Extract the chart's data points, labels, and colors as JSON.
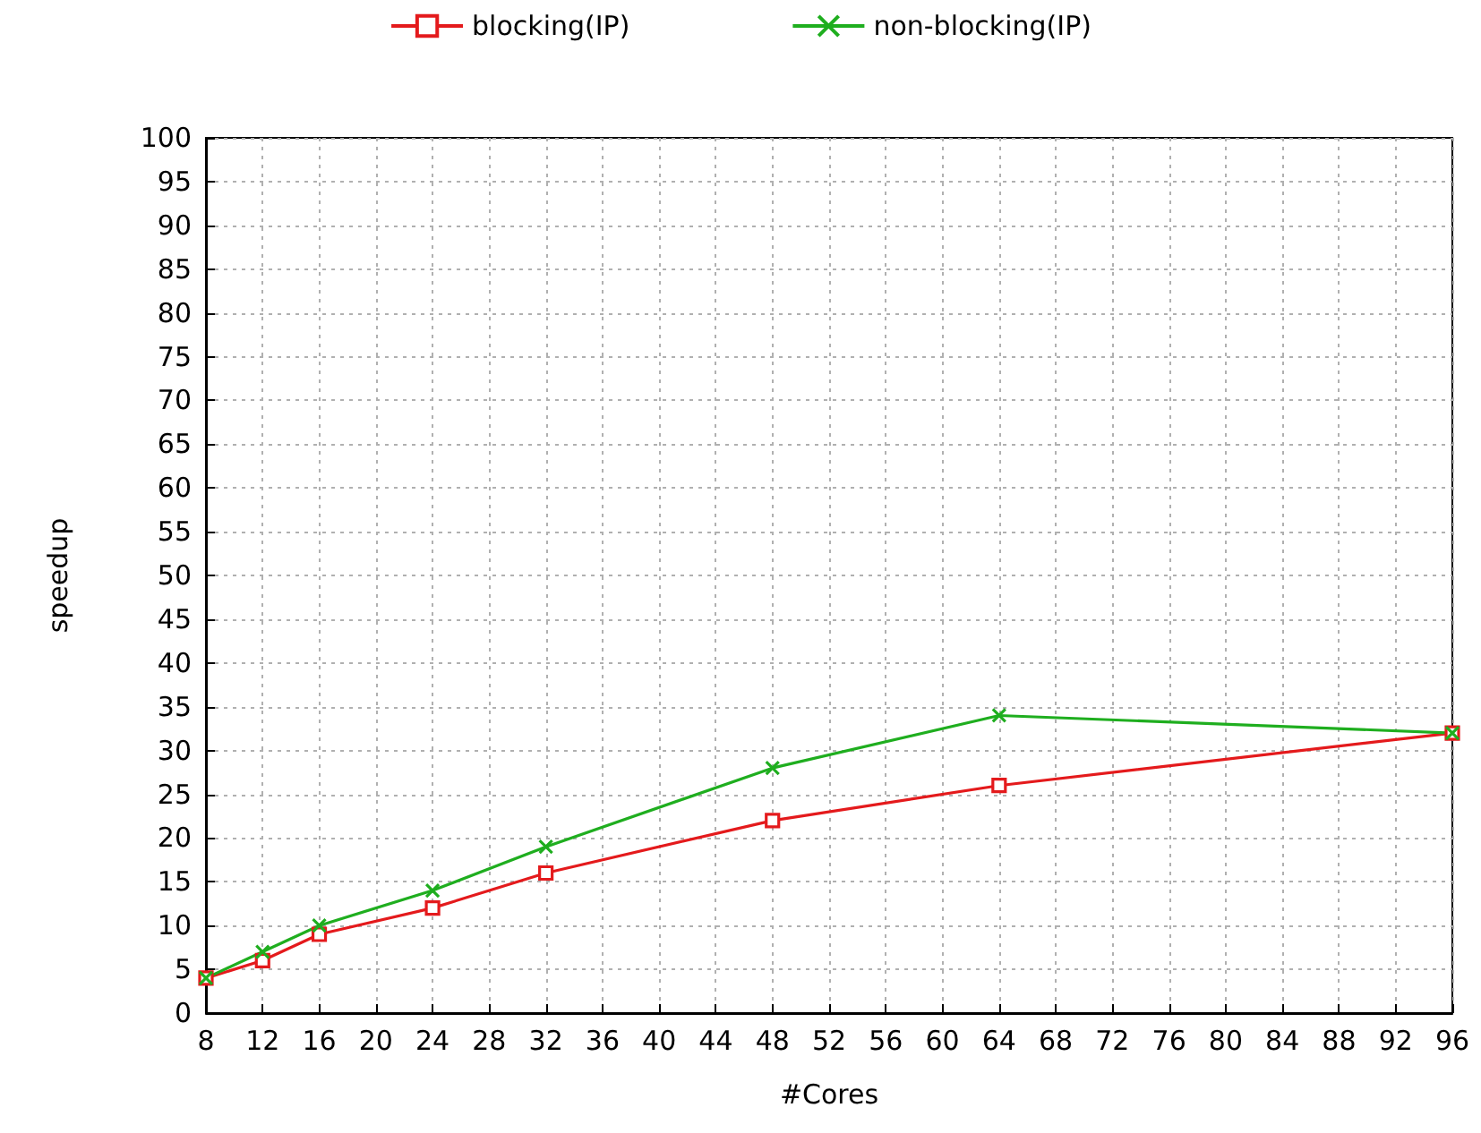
{
  "chart_data": {
    "type": "line",
    "xlabel": "#Cores",
    "ylabel": "speedup",
    "x": [
      8,
      12,
      16,
      24,
      32,
      48,
      64,
      96
    ],
    "series": [
      {
        "name": "blocking(IP)",
        "color": "#e41a1c",
        "marker": "square",
        "values": [
          4,
          6,
          9,
          12,
          16,
          22,
          26,
          32
        ]
      },
      {
        "name": "non-blocking(IP)",
        "color": "#1fae1f",
        "marker": "cross",
        "values": [
          4,
          7,
          10,
          14,
          19,
          28,
          34,
          32
        ]
      }
    ],
    "xlim": [
      8,
      96
    ],
    "xticks": [
      8,
      12,
      16,
      20,
      24,
      28,
      32,
      36,
      40,
      44,
      48,
      52,
      56,
      60,
      64,
      68,
      72,
      76,
      80,
      84,
      88,
      92,
      96
    ],
    "ylim": [
      0,
      100
    ],
    "yticks": [
      0,
      5,
      10,
      15,
      20,
      25,
      30,
      35,
      40,
      45,
      50,
      55,
      60,
      65,
      70,
      75,
      80,
      85,
      90,
      95,
      100
    ],
    "grid": true,
    "legend": "top",
    "line_style": "solid"
  }
}
